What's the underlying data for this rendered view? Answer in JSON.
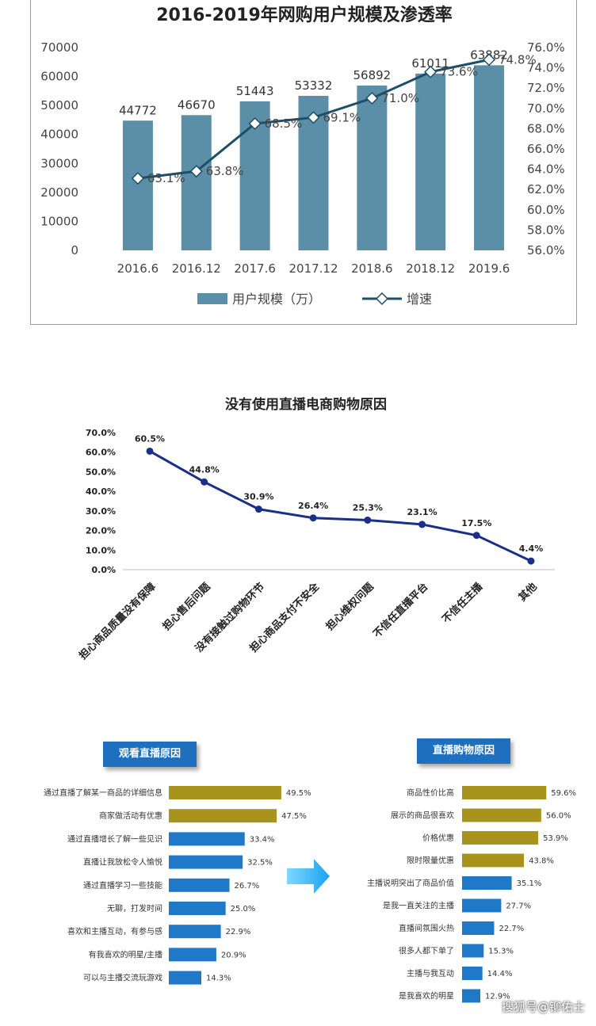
{
  "chart_data": [
    {
      "type": "bar+line",
      "title": "2016-2019年网购用户规模及渗透率",
      "categories": [
        "2016.6",
        "2016.12",
        "2017.6",
        "2017.12",
        "2018.6",
        "2018.12",
        "2019.6"
      ],
      "series": [
        {
          "name": "用户规模（万）",
          "type": "bar",
          "axis": "left",
          "values": [
            44772,
            46670,
            51443,
            53332,
            56892,
            61011,
            63882
          ]
        },
        {
          "name": "增速",
          "type": "line",
          "axis": "right",
          "values": [
            63.1,
            63.8,
            68.5,
            69.1,
            71.0,
            73.6,
            74.8
          ],
          "labels": [
            "63.1%",
            "63.8%",
            "68.5%",
            "69.1%",
            "71.0%",
            "73.6%",
            "74.8%"
          ]
        }
      ],
      "ylim": [
        0,
        70000
      ],
      "yticks": [
        "0",
        "10000",
        "20000",
        "30000",
        "40000",
        "50000",
        "60000",
        "70000"
      ],
      "y2lim": [
        56,
        76
      ],
      "y2ticks": [
        "56.0%",
        "58.0%",
        "60.0%",
        "62.0%",
        "64.0%",
        "66.0%",
        "68.0%",
        "70.0%",
        "72.0%",
        "74.0%",
        "76.0%"
      ],
      "legend_position": "bottom",
      "colors": {
        "bar": "#5b8fa8",
        "line": "#1d4e6b",
        "marker": "#ffffff"
      }
    },
    {
      "type": "line",
      "title": "没有使用直播电商购物原因",
      "categories": [
        "担心商品质量没有保障",
        "担心售后问题",
        "没有接触过购物环节",
        "担心商品支付不安全",
        "担心维权问题",
        "不信任直播平台",
        "不信任主播",
        "其他"
      ],
      "values": [
        60.5,
        44.8,
        30.9,
        26.4,
        25.3,
        23.1,
        17.5,
        4.4
      ],
      "labels": [
        "60.5%",
        "44.8%",
        "30.9%",
        "26.4%",
        "25.3%",
        "23.1%",
        "17.5%",
        "4.4%"
      ],
      "ylim": [
        0,
        70
      ],
      "yticks": [
        "0.0%",
        "10.0%",
        "20.0%",
        "30.0%",
        "40.0%",
        "50.0%",
        "60.0%",
        "70.0%"
      ],
      "colors": {
        "line": "#1a2f8a"
      }
    },
    {
      "type": "bar",
      "orientation": "horizontal",
      "title": "观看直播原因",
      "categories": [
        "通过直播了解某一商品的详细信息",
        "商家做活动有优惠",
        "通过直播增长了解一些见识",
        "直播让我放松令人愉悦",
        "通过直播学习一些技能",
        "无聊，打发时间",
        "喜欢和主播互动，有参与感",
        "有我喜欢的明星/主播",
        "可以与主播交流玩游戏"
      ],
      "values": [
        49.5,
        47.5,
        33.4,
        32.5,
        26.7,
        25.0,
        22.9,
        20.9,
        14.3
      ],
      "labels": [
        "49.5%",
        "47.5%",
        "33.4%",
        "32.5%",
        "26.7%",
        "25.0%",
        "22.9%",
        "20.9%",
        "14.3%"
      ],
      "highlight_count": 2,
      "colors": {
        "highlight": "#a8941c",
        "normal": "#1f78c8"
      }
    },
    {
      "type": "bar",
      "orientation": "horizontal",
      "title": "直播购物原因",
      "categories": [
        "商品性价比高",
        "展示的商品很喜欢",
        "价格优惠",
        "限时限量优惠",
        "主播说明突出了商品价值",
        "是我一直关注的主播",
        "直播间氛围火热",
        "很多人都下单了",
        "主播与我互动",
        "是我喜欢的明星"
      ],
      "values": [
        59.6,
        56.0,
        53.9,
        43.8,
        35.1,
        27.7,
        22.7,
        15.3,
        14.4,
        12.9
      ],
      "labels": [
        "59.6%",
        "56.0%",
        "53.9%",
        "43.8%",
        "35.1%",
        "27.7%",
        "22.7%",
        "15.3%",
        "14.4%",
        "12.9%"
      ],
      "highlight_count": 4,
      "colors": {
        "highlight": "#a8941c",
        "normal": "#1f78c8"
      }
    }
  ],
  "watermark": "搜狐号@铆佑士"
}
